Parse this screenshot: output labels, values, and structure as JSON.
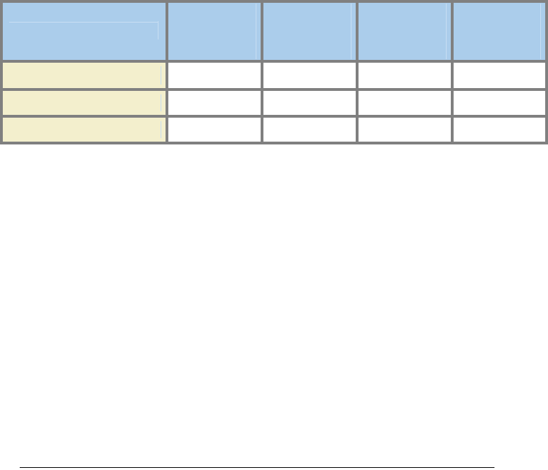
{
  "table": {
    "header": [
      "",
      "",
      "",
      "",
      ""
    ],
    "rows": [
      [
        "",
        "",
        "",
        "",
        ""
      ],
      [
        "",
        "",
        "",
        "",
        ""
      ],
      [
        "",
        "",
        "",
        "",
        ""
      ]
    ],
    "colors": {
      "border": "#808080",
      "header_bg": "#abcdeb",
      "label_bg": "#f3efcd",
      "cell_bg": "#ffffff"
    }
  }
}
